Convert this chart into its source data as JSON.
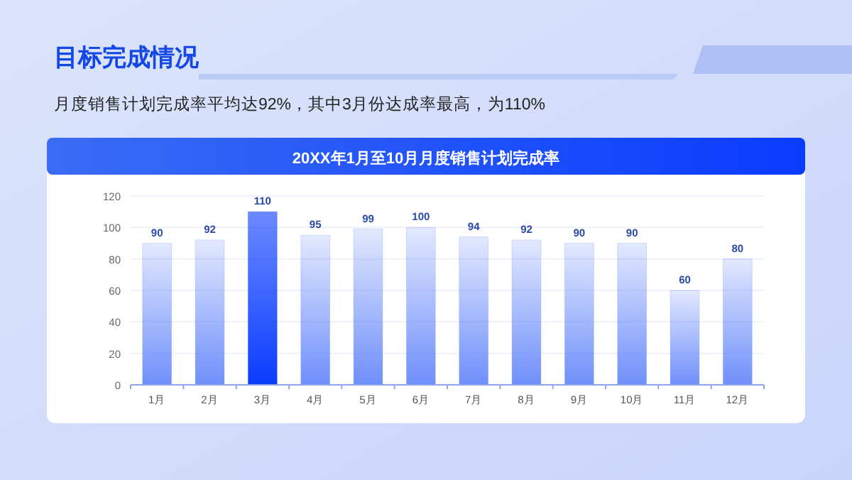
{
  "chart_data": {
    "type": "bar",
    "title": "20XX年1月至10月月度销售计划完成率",
    "annotations": [
      "目标完成情况",
      "月度销售计划完成率平均达92%，其中3月份达成率最高，为110%"
    ],
    "categories": [
      "1月",
      "2月",
      "3月",
      "4月",
      "5月",
      "6月",
      "7月",
      "8月",
      "9月",
      "10月",
      "11月",
      "12月"
    ],
    "values": [
      90,
      92,
      110,
      95,
      99,
      100,
      94,
      92,
      90,
      90,
      60,
      80
    ],
    "colors": [
      "#6f8ffb",
      "#6f8ffb",
      "#0a3cff",
      "#6f8ffb",
      "#6f8ffb",
      "#6f8ffb",
      "#6f8ffb",
      "#6f8ffb",
      "#6f8ffb",
      "#6f8ffb",
      "#6f8ffb",
      "#6f8ffb"
    ],
    "ylim": [
      0,
      120
    ],
    "yticks": [
      0,
      20,
      40,
      60,
      80,
      100,
      120
    ],
    "grid": "y",
    "data_labels": true
  }
}
